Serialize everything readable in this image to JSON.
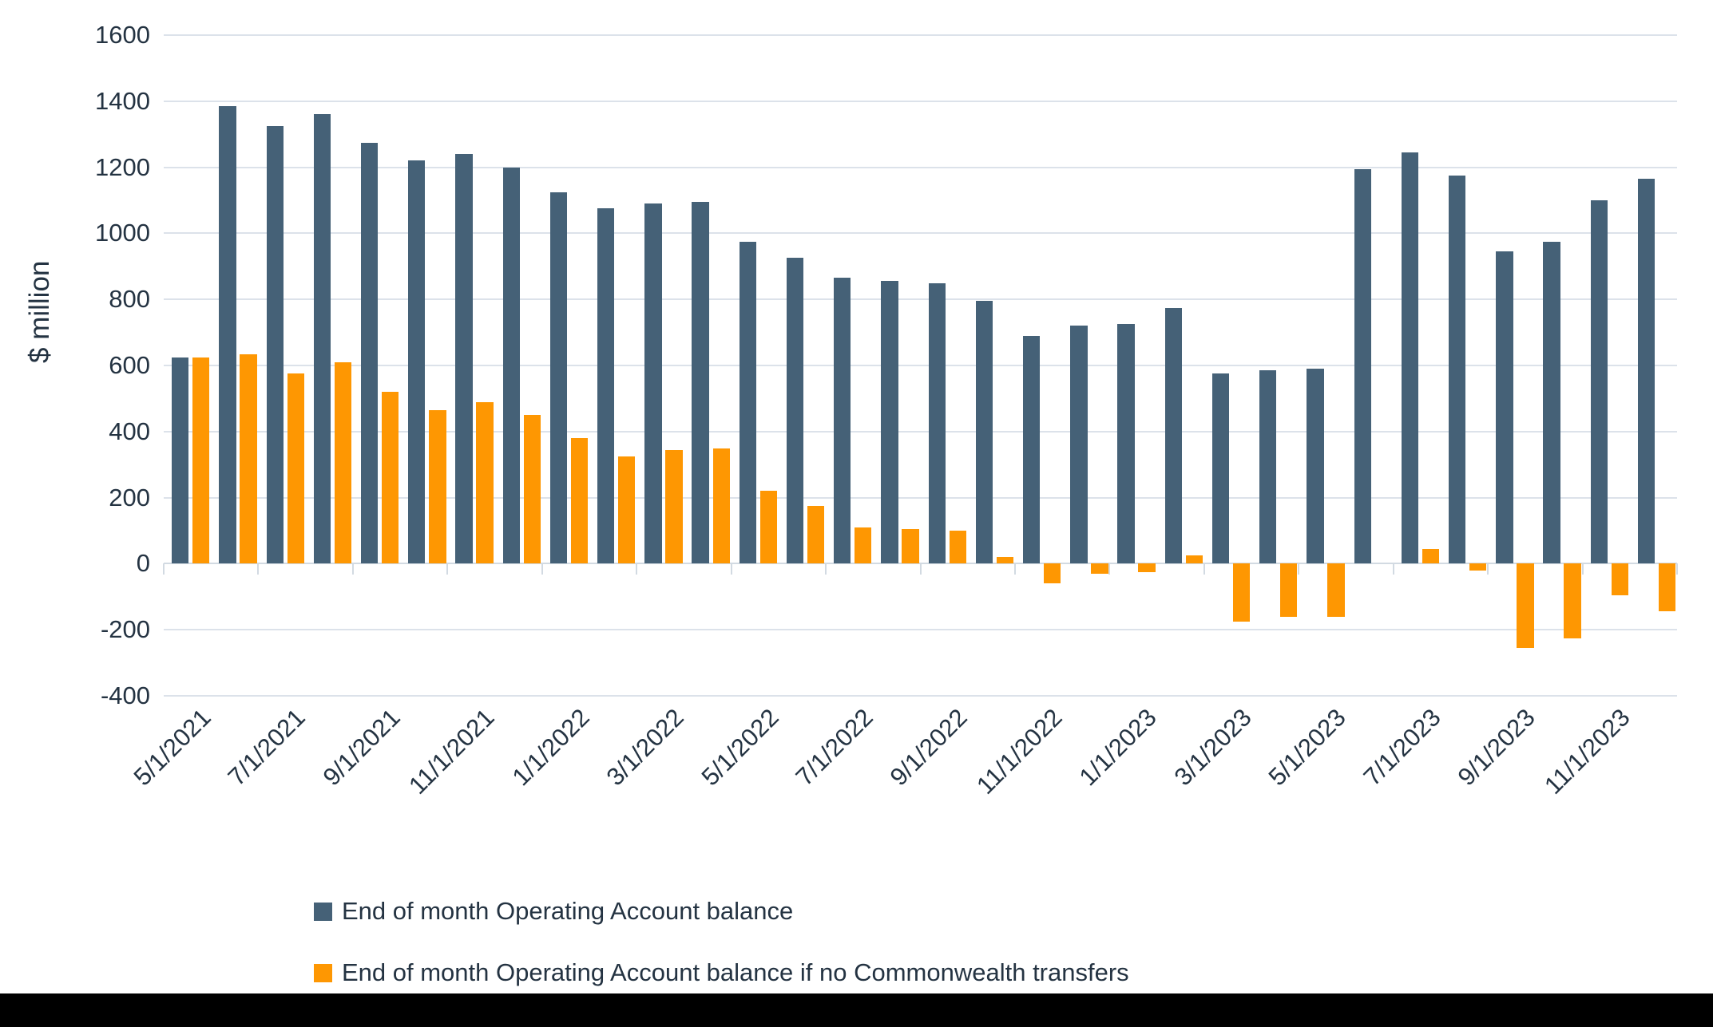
{
  "chart_data": {
    "type": "bar",
    "title": "",
    "ylabel": "$ million",
    "ylim": [
      -400,
      1600
    ],
    "ytick_step": 200,
    "grid": true,
    "legend_position": "bottom-left",
    "xtick_every": 2,
    "categories": [
      "5/1/2021",
      "6/1/2021",
      "7/1/2021",
      "8/1/2021",
      "9/1/2021",
      "10/1/2021",
      "11/1/2021",
      "12/1/2021",
      "1/1/2022",
      "2/1/2022",
      "3/1/2022",
      "4/1/2022",
      "5/1/2022",
      "6/1/2022",
      "7/1/2022",
      "8/1/2022",
      "9/1/2022",
      "10/1/2022",
      "11/1/2022",
      "12/1/2022",
      "1/1/2023",
      "2/1/2023",
      "3/1/2023",
      "4/1/2023",
      "5/1/2023",
      "6/1/2023",
      "7/1/2023",
      "8/1/2023",
      "9/1/2023",
      "10/1/2023",
      "11/1/2023",
      "12/1/2023"
    ],
    "series": [
      {
        "name": "End of month Operating Account balance",
        "color": "#456177",
        "values": [
          625,
          1385,
          1325,
          1360,
          1275,
          1220,
          1240,
          1200,
          1125,
          1075,
          1090,
          1095,
          975,
          925,
          865,
          855,
          850,
          795,
          690,
          720,
          725,
          775,
          575,
          585,
          590,
          1195,
          1245,
          1175,
          945,
          975,
          1100,
          1165
        ]
      },
      {
        "name": "End of month Operating Account balance if no Commonwealth transfers",
        "color": "#FE9702",
        "values": [
          625,
          635,
          575,
          610,
          520,
          465,
          490,
          450,
          380,
          325,
          345,
          350,
          220,
          175,
          110,
          105,
          100,
          20,
          -60,
          -30,
          -25,
          25,
          -175,
          -160,
          -160,
          0,
          45,
          -20,
          -255,
          -225,
          -95,
          -145
        ]
      }
    ],
    "colors": {
      "grid": "#dce2ea",
      "axis": "#d2dae2",
      "text": "#243342",
      "footer_bar": "#000000"
    }
  }
}
